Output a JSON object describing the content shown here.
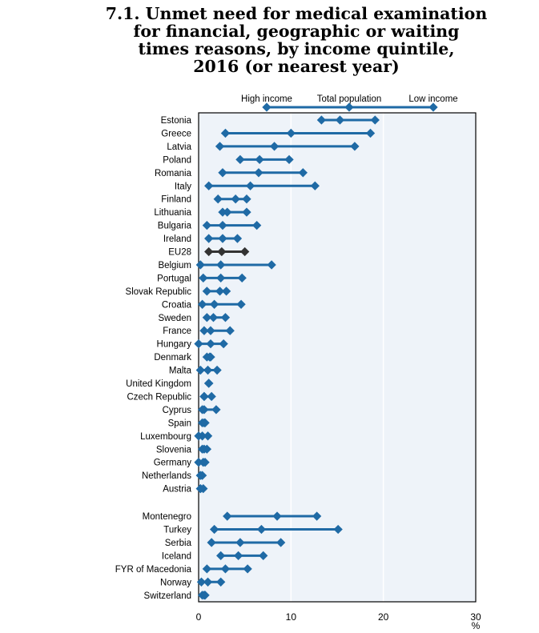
{
  "title_lines": [
    "7.1. Unmet need for medical examination",
    "for financial, geographic or waiting",
    "times reasons, by income quintile,",
    "2016 (or nearest year)"
  ],
  "colors": {
    "series": "#1f6aa5",
    "eu": "#333333",
    "plot_bg": "#eef3f9",
    "grid": "#ffffff"
  },
  "chart_data": {
    "type": "dot",
    "xlabel": "%",
    "xlim": [
      0,
      30
    ],
    "xticks": [
      0,
      10,
      20,
      30
    ],
    "legend": {
      "placement": "top",
      "items": [
        "High income",
        "Total population",
        "Low income"
      ]
    },
    "categories": [
      "Estonia",
      "Greece",
      "Latvia",
      "Poland",
      "Romania",
      "Italy",
      "Finland",
      "Lithuania",
      "Bulgaria",
      "Ireland",
      "EU28",
      "Belgium",
      "Portugal",
      "Slovak Republic",
      "Croatia",
      "Sweden",
      "France",
      "Hungary",
      "Denmark",
      "Malta",
      "United Kingdom",
      "Czech Republic",
      "Cyprus",
      "Spain",
      "Luxembourg",
      "Slovenia",
      "Germany",
      "Netherlands",
      "Austria",
      "Montenegro",
      "Turkey",
      "Serbia",
      "Iceland",
      "FYR of Macedonia",
      "Norway",
      "Switzerland"
    ],
    "highlight": "EU28",
    "series": [
      {
        "name": "High income",
        "values": [
          13.3,
          2.9,
          2.3,
          4.5,
          2.6,
          1.1,
          2.1,
          2.6,
          0.9,
          1.1,
          1.1,
          0.2,
          0.5,
          0.9,
          0.4,
          0.9,
          0.6,
          0.0,
          0.9,
          0.2,
          1.1,
          0.6,
          0.4,
          0.4,
          0.0,
          0.4,
          0.0,
          0.2,
          0.2,
          3.1,
          1.7,
          1.4,
          2.4,
          0.9,
          0.3,
          0.4
        ]
      },
      {
        "name": "Total population",
        "values": [
          15.3,
          10.0,
          8.2,
          6.6,
          6.5,
          5.6,
          4.0,
          3.1,
          2.6,
          2.6,
          2.5,
          2.4,
          2.4,
          2.3,
          1.7,
          1.6,
          1.3,
          1.3,
          1.2,
          1.0,
          1.1,
          0.6,
          0.6,
          0.6,
          0.4,
          0.6,
          0.5,
          0.2,
          0.2,
          8.5,
          6.8,
          4.5,
          4.3,
          2.9,
          1.0,
          0.6
        ]
      },
      {
        "name": "Low income",
        "values": [
          19.1,
          18.6,
          16.9,
          9.8,
          11.3,
          12.6,
          5.2,
          5.2,
          6.3,
          4.2,
          5.0,
          7.9,
          4.7,
          3.0,
          4.6,
          2.9,
          3.4,
          2.7,
          1.3,
          2.0,
          1.1,
          1.4,
          1.9,
          0.7,
          1.0,
          0.9,
          0.7,
          0.4,
          0.5,
          12.8,
          15.1,
          8.9,
          7.0,
          5.3,
          2.4,
          0.7
        ]
      }
    ]
  }
}
